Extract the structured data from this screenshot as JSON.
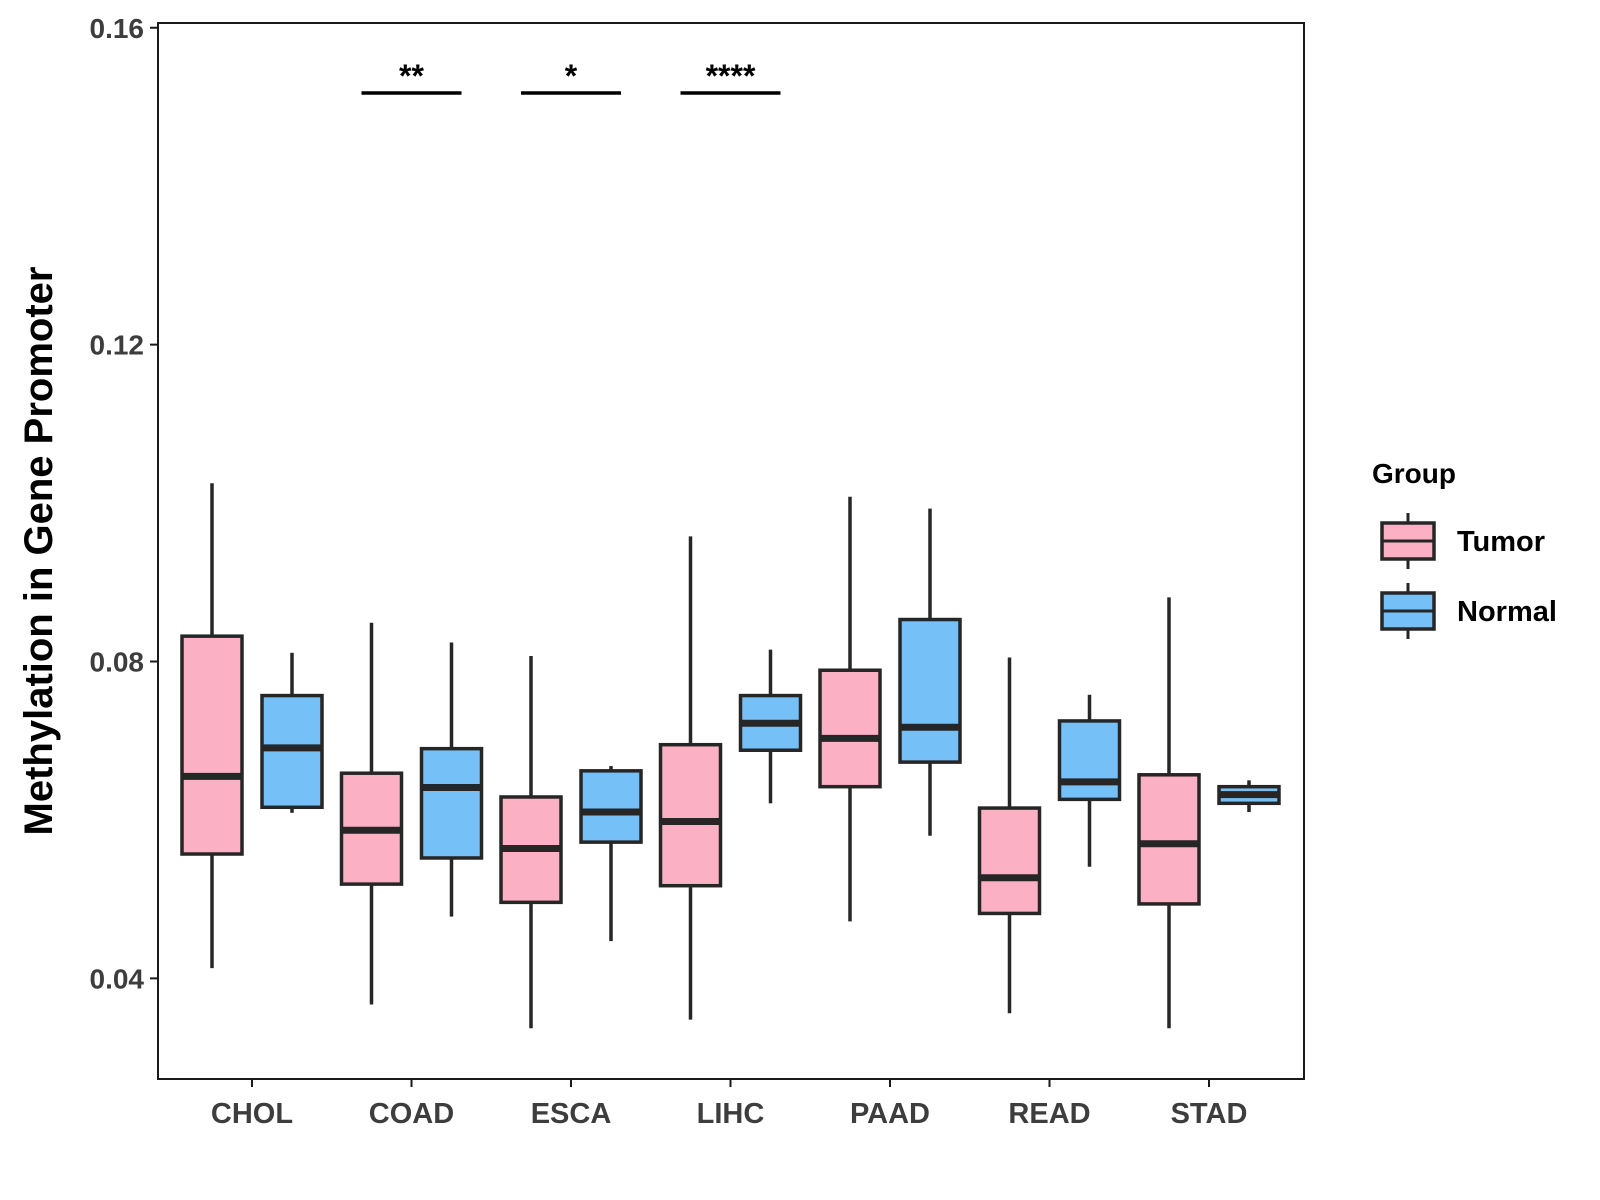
{
  "chart_data": {
    "type": "boxplot",
    "title": "",
    "xlabel": "",
    "ylabel": "Methylation in Gene Promoter",
    "ylim": [
      0.0273,
      0.1606
    ],
    "y_ticks": [
      0.04,
      0.08,
      0.12,
      0.16
    ],
    "y_tick_labels": [
      "0.04",
      "0.08",
      "0.12",
      "0.16"
    ],
    "categories": [
      "CHOL",
      "COAD",
      "ESCA",
      "LIHC",
      "PAAD",
      "READ",
      "STAD"
    ],
    "grid": false,
    "legend": {
      "title": "Group",
      "position": "right",
      "entries": [
        {
          "name": "Tumor",
          "color": "#FBB0C3"
        },
        {
          "name": "Normal",
          "color": "#76C0F8"
        }
      ]
    },
    "series": [
      {
        "name": "Tumor",
        "color": "#FBB0C3",
        "boxes": [
          {
            "min": 0.0413,
            "q1": 0.0557,
            "median": 0.0655,
            "q3": 0.0832,
            "max": 0.1025
          },
          {
            "min": 0.0367,
            "q1": 0.0519,
            "median": 0.0587,
            "q3": 0.0659,
            "max": 0.0849
          },
          {
            "min": 0.0337,
            "q1": 0.0496,
            "median": 0.0564,
            "q3": 0.0629,
            "max": 0.0807
          },
          {
            "min": 0.0348,
            "q1": 0.0517,
            "median": 0.0598,
            "q3": 0.0695,
            "max": 0.0958
          },
          {
            "min": 0.0472,
            "q1": 0.0642,
            "median": 0.0703,
            "q3": 0.0789,
            "max": 0.1008
          },
          {
            "min": 0.0356,
            "q1": 0.0482,
            "median": 0.0527,
            "q3": 0.0615,
            "max": 0.0805
          },
          {
            "min": 0.0337,
            "q1": 0.0494,
            "median": 0.057,
            "q3": 0.0657,
            "max": 0.0881
          }
        ]
      },
      {
        "name": "Normal",
        "color": "#76C0F8",
        "boxes": [
          {
            "min": 0.0609,
            "q1": 0.0616,
            "median": 0.0691,
            "q3": 0.0757,
            "max": 0.0811
          },
          {
            "min": 0.0478,
            "q1": 0.0552,
            "median": 0.0641,
            "q3": 0.069,
            "max": 0.0824
          },
          {
            "min": 0.0447,
            "q1": 0.0572,
            "median": 0.061,
            "q3": 0.0662,
            "max": 0.0668
          },
          {
            "min": 0.0621,
            "q1": 0.0688,
            "median": 0.0722,
            "q3": 0.0757,
            "max": 0.0815
          },
          {
            "min": 0.058,
            "q1": 0.0673,
            "median": 0.0717,
            "q3": 0.0853,
            "max": 0.0993
          },
          {
            "min": 0.0541,
            "q1": 0.0626,
            "median": 0.0648,
            "q3": 0.0725,
            "max": 0.0758
          },
          {
            "min": 0.061,
            "q1": 0.0621,
            "median": 0.0632,
            "q3": 0.0642,
            "max": 0.065
          }
        ]
      }
    ],
    "significance": [
      {
        "category": "COAD",
        "label": "**"
      },
      {
        "category": "ESCA",
        "label": "*"
      },
      {
        "category": "LIHC",
        "label": "****"
      }
    ]
  }
}
